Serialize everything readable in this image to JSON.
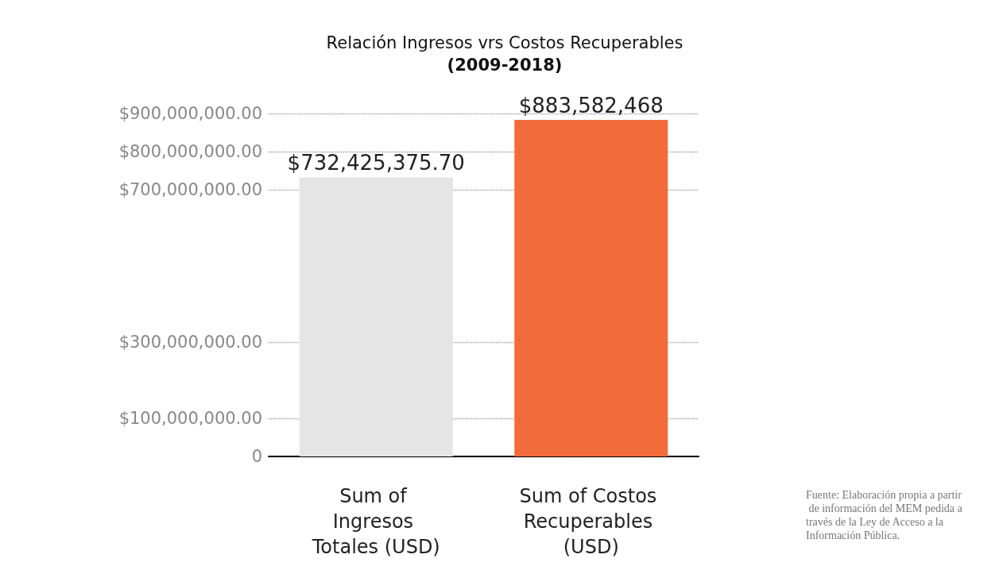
{
  "chart_data": {
    "type": "bar",
    "title": "Relación Ingresos vrs Costos Recuperables",
    "subtitle": "(2009-2018)",
    "categories": [
      "Sum of Ingresos Totales (USD)",
      "Sum of Costos Recuperables (USD)"
    ],
    "values": [
      732425375.7,
      883582468
    ],
    "colors": [
      "#e5e5e5",
      "#f26b3a"
    ],
    "value_labels": [
      "$732,425,375.70",
      "$883,582,468"
    ],
    "ylim": [
      0,
      900000000
    ],
    "yticks": [
      0,
      {
        "value": 100000000,
        "label": "$100,000,000.00"
      },
      {
        "value": 300000000,
        "label": "$300,000,000.00"
      },
      {
        "value": 700000000,
        "label": "$700,000,000.00"
      },
      {
        "value": 800000000,
        "label": "$800,000,000.00"
      },
      {
        "value": 900000000,
        "label": "$900,000,000.00"
      }
    ],
    "grid": "y",
    "annotations": [
      "Fuente: Elaboración propia a partir de información del MEM pedida a través de la Ley de Acceso a la Información Pública."
    ]
  }
}
